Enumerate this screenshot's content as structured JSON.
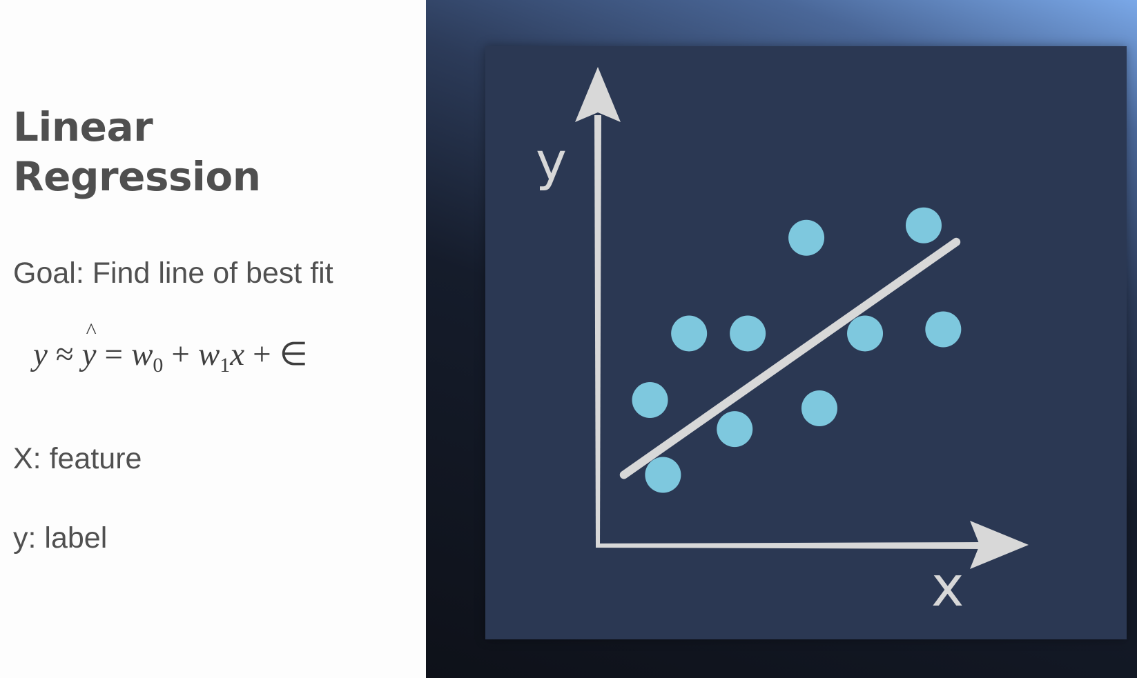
{
  "slide": {
    "title": "Linear\nRegression",
    "goal": "Goal: Find line of best fit",
    "equation": {
      "y": "y",
      "approx": "≈",
      "yhat": "y",
      "hat": "^",
      "eq": "=",
      "w": "w",
      "sub0": "0",
      "plus": "+",
      "sub1": "1",
      "x": "x",
      "epsilon": "∈"
    },
    "feature": "X: feature",
    "label": "y: label"
  },
  "colors": {
    "point": "#7ec8de",
    "axis": "#d8d8d8",
    "frame": "#2b3853"
  },
  "chart_data": {
    "type": "scatter",
    "xlabel": "x",
    "ylabel": "y",
    "xlim": [
      0,
      10
    ],
    "ylim": [
      0,
      10
    ],
    "grid": false,
    "points": [
      {
        "x": 1.0,
        "y": 1.7
      },
      {
        "x": 0.8,
        "y": 3.5
      },
      {
        "x": 1.4,
        "y": 5.1
      },
      {
        "x": 2.1,
        "y": 2.8
      },
      {
        "x": 2.3,
        "y": 5.1
      },
      {
        "x": 3.2,
        "y": 7.4
      },
      {
        "x": 3.4,
        "y": 3.3
      },
      {
        "x": 4.1,
        "y": 5.1
      },
      {
        "x": 5.0,
        "y": 7.7
      },
      {
        "x": 5.3,
        "y": 5.2
      }
    ],
    "fit_line": {
      "x_start": 0.4,
      "y_start": 1.7,
      "x_end": 5.5,
      "y_end": 7.3
    }
  }
}
